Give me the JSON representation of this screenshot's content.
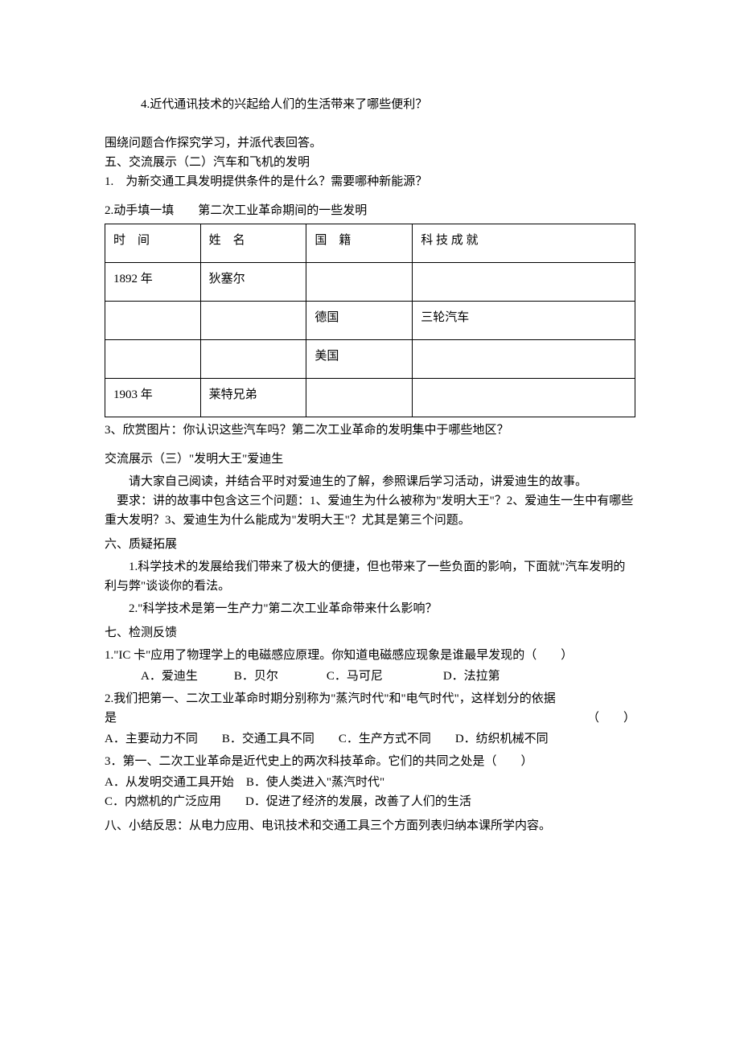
{
  "q4": "4.近代通讯技术的兴起给人们的生活带来了哪些便利？",
  "discussLine": "围绕问题合作探究学习，并派代表回答。",
  "sec5Header": "五、交流展示（二）汽车和飞机的发明",
  "sec5Q1": "1.　为新交通工具发明提供条件的是什么？需要哪种新能源？",
  "sec5Q2Prefix": "2.动手填一填　　第二次工业革命期间的一些发明",
  "table": {
    "columns": [
      "时　间",
      "姓　名",
      "国　籍",
      "科 技 成 就"
    ],
    "rows": [
      [
        "1892 年",
        "狄塞尔",
        "",
        ""
      ],
      [
        "",
        "",
        "德国",
        "三轮汽车"
      ],
      [
        "",
        "",
        "美国",
        ""
      ],
      [
        "1903 年",
        "莱特兄弟",
        "",
        ""
      ]
    ]
  },
  "sec5Q3": "3、欣赏图片：你认识这些汽车吗？第二次工业革命的发明集中于哪些地区？",
  "sec5bHeader": "交流展示（三）\"发明大王\"爱迪生",
  "sec5bP1": "请大家自己阅读，并结合平时对爱迪生的了解，参照课后学习活动，讲爱迪生的故事。",
  "sec5bP2": "要求：讲的故事中包含这三个问题：1、爱迪生为什么被称为\"发明大王\"？2、爱迪生一生中有哪些重大发明？3、爱迪生为什么能成为\"发明大王\"？尤其是第三个问题。",
  "sec6Header": "六、质疑拓展",
  "sec6P1": "1.科学技术的发展给我们带来了极大的便捷，但也带来了一些负面的影响，下面就\"汽车发明的利与弊\"谈谈你的看法。",
  "sec6P2": "2.\"科学技术是第一生产力\"第二次工业革命带来什么影响？",
  "sec7Header": "七、检测反馈",
  "quiz1": {
    "stem": "1.\"IC 卡\"应用了物理学上的电磁感应原理。你知道电磁感应现象是谁最早发现的（　　）",
    "opts": "A．爱迪生　　　B．贝尔　　　　C．马可尼　　　　　D．法拉第"
  },
  "quiz2": {
    "stemLine1": "2.我们把第一、二次工业革命时期分别称为\"蒸汽时代\"和\"电气时代\"，这样划分的依据",
    "stemLine2Left": "是",
    "paren": "（　　）",
    "opts": "A．主要动力不同　　B．交通工具不同　　C．生产方式不同　　D．纺织机械不同"
  },
  "quiz3": {
    "stem": "3．第一、二次工业革命是近代史上的两次科技革命。它们的共同之处是（　　）",
    "optsLine1": "A．从发明交通工具开始　B．使人类进入\"蒸汽时代\"",
    "optsLine2": "C．内燃机的广泛应用　　D．促进了经济的发展，改善了人们的生活"
  },
  "sec8": "八、小结反思：从电力应用、电讯技术和交通工具三个方面列表归纳本课所学内容。"
}
